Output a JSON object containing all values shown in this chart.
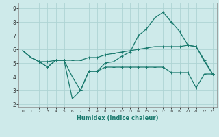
{
  "title": "",
  "xlabel": "Humidex (Indice chaleur)",
  "ylabel": "",
  "xlim": [
    -0.5,
    23.5
  ],
  "ylim": [
    1.8,
    9.4
  ],
  "yticks": [
    2,
    3,
    4,
    5,
    6,
    7,
    8,
    9
  ],
  "xticks": [
    0,
    1,
    2,
    3,
    4,
    5,
    6,
    7,
    8,
    9,
    10,
    11,
    12,
    13,
    14,
    15,
    16,
    17,
    18,
    19,
    20,
    21,
    22,
    23
  ],
  "bg_color": "#ceeaea",
  "line_color": "#1a7a6e",
  "grid_color": "#aed4d4",
  "line1_x": [
    0,
    1,
    2,
    3,
    4,
    5,
    6,
    7,
    8,
    9,
    10,
    11,
    12,
    13,
    14,
    15,
    16,
    17,
    18,
    19,
    20,
    21,
    22,
    23
  ],
  "line1_y": [
    5.9,
    5.4,
    5.1,
    4.7,
    5.2,
    5.2,
    4.0,
    3.0,
    4.4,
    4.4,
    5.0,
    5.1,
    5.5,
    5.8,
    7.0,
    7.5,
    8.3,
    8.7,
    8.0,
    7.3,
    6.3,
    6.2,
    5.1,
    4.2
  ],
  "line2_x": [
    0,
    1,
    2,
    3,
    4,
    5,
    6,
    7,
    8,
    9,
    10,
    11,
    12,
    13,
    14,
    15,
    16,
    17,
    18,
    19,
    20,
    21,
    22,
    23
  ],
  "line2_y": [
    5.9,
    5.4,
    5.1,
    4.7,
    5.2,
    5.2,
    2.4,
    3.0,
    4.4,
    4.4,
    4.7,
    4.7,
    4.7,
    4.7,
    4.7,
    4.7,
    4.7,
    4.7,
    4.3,
    4.3,
    4.3,
    3.2,
    4.2,
    4.2
  ],
  "line3_x": [
    0,
    1,
    2,
    3,
    4,
    5,
    6,
    7,
    8,
    9,
    10,
    11,
    12,
    13,
    14,
    15,
    16,
    17,
    18,
    19,
    20,
    21,
    22,
    23
  ],
  "line3_y": [
    5.9,
    5.4,
    5.1,
    5.1,
    5.2,
    5.2,
    5.2,
    5.2,
    5.4,
    5.4,
    5.6,
    5.7,
    5.8,
    5.9,
    6.0,
    6.1,
    6.2,
    6.2,
    6.2,
    6.2,
    6.3,
    6.2,
    5.2,
    4.2
  ],
  "marker": "+",
  "markersize": 3,
  "linewidth": 0.9
}
